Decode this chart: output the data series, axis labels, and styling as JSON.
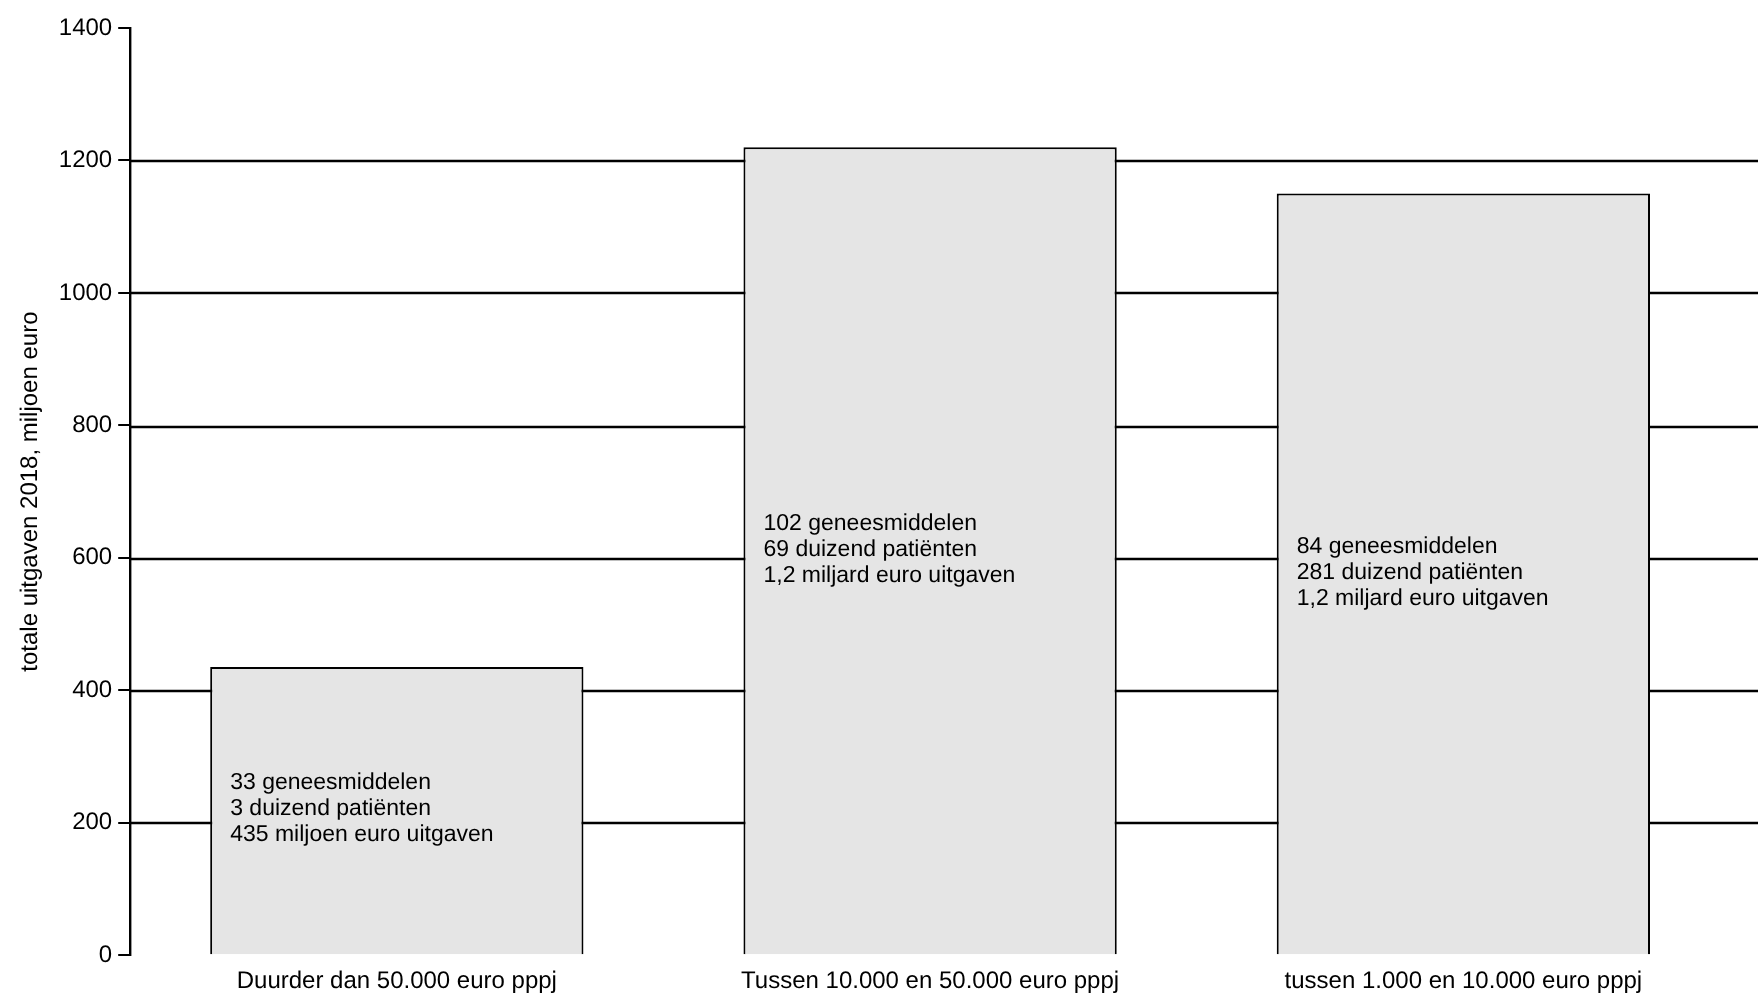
{
  "chart_data": {
    "type": "bar",
    "ylabel": "totale uitgaven 2018, miljoen euro",
    "categories": [
      "Duurder dan 50.000 euro pppj",
      "Tussen 10.000 en 50.000 euro pppj",
      "tussen 1.000 en 10.000 euro pppj"
    ],
    "values": [
      435,
      1220,
      1150
    ],
    "color": "#e5e5e5",
    "ylim": [
      0,
      1400
    ],
    "yticks": [
      0,
      200,
      400,
      600,
      800,
      1000,
      1200,
      1400
    ],
    "grid": "y",
    "legend": false,
    "annotations": [
      "33 geneesmiddelen\n3 duizend patiënten\n435 miljoen euro uitgaven",
      "102 geneesmiddelen\n69 duizend patiënten\n1,2 miljard euro uitgaven",
      "84 geneesmiddelen\n281 duizend patiënten\n1,2 miljard euro uitgaven"
    ]
  }
}
